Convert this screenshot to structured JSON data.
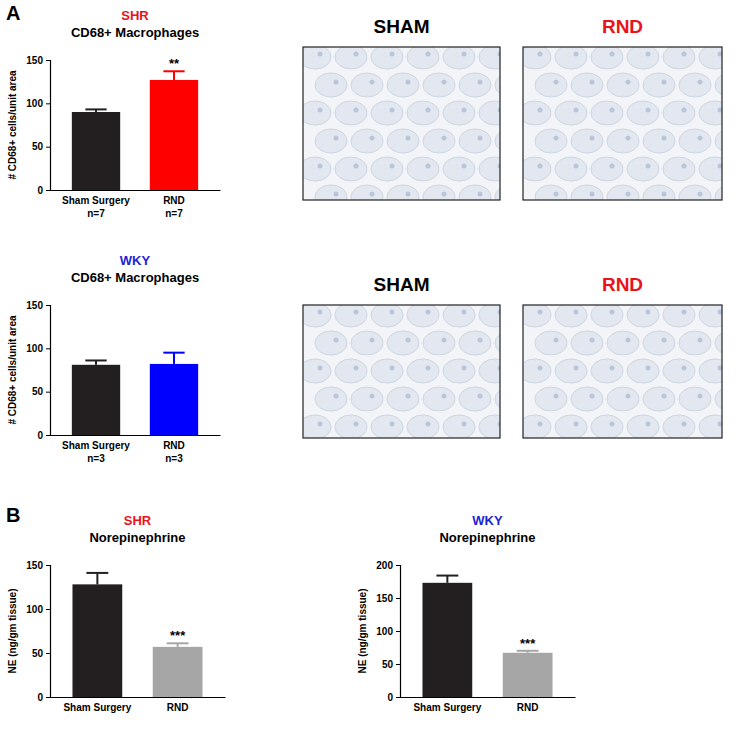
{
  "panels": [
    {
      "label": "A"
    },
    {
      "label": "B"
    }
  ],
  "images": [
    {
      "labels": [
        "SHAM",
        "RND"
      ]
    },
    {
      "labels": [
        "SHAM",
        "RND"
      ]
    }
  ],
  "chart_data": [
    {
      "type": "bar",
      "subtitle": "SHR",
      "title": "CD68+ Macrophages",
      "y_label": "# CD68+ cells/unit area",
      "categories": [
        [
          "Sham Surgery",
          "n=7"
        ],
        [
          "RND",
          "n=7"
        ]
      ],
      "values": [
        90,
        127
      ],
      "errors": [
        3,
        10
      ],
      "colors": [
        "#231f20",
        "#ff0000"
      ],
      "annotations": [
        null,
        "**"
      ],
      "ylim": [
        0,
        150
      ],
      "yticks": [
        0,
        50,
        100,
        150
      ]
    },
    {
      "type": "bar",
      "subtitle": "WKY",
      "title": "CD68+ Macrophages",
      "y_label": "# CD68+ cells/unit area",
      "categories": [
        [
          "Sham Surgery",
          "n=3"
        ],
        [
          "RND",
          "n=3"
        ]
      ],
      "values": [
        81,
        82
      ],
      "errors": [
        5,
        13
      ],
      "colors": [
        "#231f20",
        "#0000ff"
      ],
      "ylim": [
        0,
        150
      ],
      "yticks": [
        0,
        50,
        100,
        150
      ]
    },
    {
      "type": "bar",
      "subtitle": "SHR",
      "title": "Norepinephrine",
      "y_label": "NE (ng/gm tissue)",
      "categories": [
        "Sham Surgery",
        "RND"
      ],
      "values": [
        128,
        57
      ],
      "errors": [
        13,
        4
      ],
      "colors": [
        "#231f20",
        "#a6a6a6"
      ],
      "annotations": [
        null,
        "***"
      ],
      "ylim": [
        0,
        150
      ],
      "yticks": [
        0,
        50,
        100,
        150
      ]
    },
    {
      "type": "bar",
      "subtitle": "WKY",
      "title": "Norepinephrine",
      "y_label": "NE (ng/gm tissue)",
      "categories": [
        "Sham Surgery",
        "RND"
      ],
      "values": [
        173,
        67
      ],
      "errors": [
        11,
        3
      ],
      "colors": [
        "#231f20",
        "#a6a6a6"
      ],
      "annotations": [
        null,
        "***"
      ],
      "ylim": [
        0,
        200
      ],
      "yticks": [
        0,
        50,
        100,
        150,
        200
      ]
    }
  ]
}
